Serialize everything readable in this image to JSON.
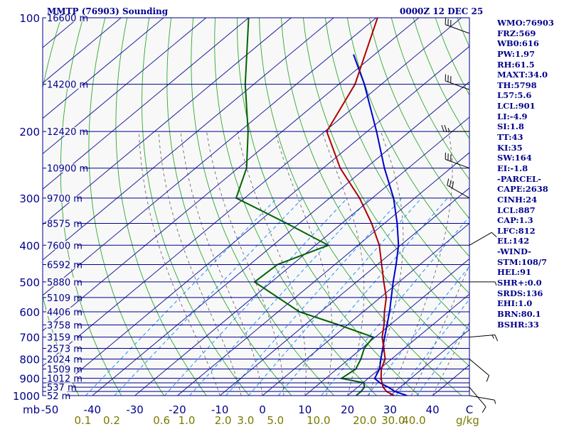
{
  "header": {
    "left": "MMTP (76903) Sounding",
    "right": "0000Z 12 DEC 25"
  },
  "indices": [
    "WMO:76903",
    "FRZ:569",
    "WB0:616",
    "PW:1.97",
    "RH:61.5",
    "MAXT:34.0",
    "TH:5798",
    "L57:5.6",
    "LCL:901",
    "LI:-4.9",
    "SI:1.8",
    "TT:43",
    "KI:35",
    "SW:164",
    "EI:-1.8",
    "-PARCEL-",
    "CAPE:2638",
    "CINH:24",
    "LCL:887",
    "CAP:1.3",
    "LFC:812",
    "EL:142",
    "-WIND-",
    "STM:108/7",
    "HEL:91",
    "SHR+:0.0",
    "SRDS:136",
    "EHI:1.0",
    "BRN:80.1",
    "BSHR:33"
  ],
  "colors": {
    "background_plot": "#f8f8f8",
    "isobar": "#00008b",
    "isotherm": "#2020a0",
    "dry_adiabat": "#2fa82f",
    "moist_adiabat": "#5a5a5a",
    "mixing_ratio": "#1e90ff",
    "temperature": "#b00000",
    "dewpoint": "#006400",
    "parcel": "#0000cd",
    "wind_barb": "#000000",
    "label_dark": "#00008b",
    "label_mixing": "#7a7a00"
  },
  "chart_data": {
    "type": "skew-t",
    "pressure_label": "mb",
    "pressure_ticks": [
      100,
      200,
      300,
      400,
      500,
      600,
      700,
      800,
      900,
      1000
    ],
    "pressure_lines": [
      100,
      150,
      200,
      250,
      300,
      350,
      400,
      450,
      500,
      550,
      600,
      650,
      700,
      750,
      800,
      850,
      900,
      925,
      950,
      975,
      1000
    ],
    "height_labels": [
      {
        "p": 100,
        "label": "16600 m"
      },
      {
        "p": 150,
        "label": "14200 m"
      },
      {
        "p": 200,
        "label": "12420 m"
      },
      {
        "p": 250,
        "label": "10900 m"
      },
      {
        "p": 300,
        "label": "9700 m"
      },
      {
        "p": 350,
        "label": "8575 m"
      },
      {
        "p": 400,
        "label": "7600 m"
      },
      {
        "p": 450,
        "label": "6592 m"
      },
      {
        "p": 500,
        "label": "5880 m"
      },
      {
        "p": 550,
        "label": "5109 m"
      },
      {
        "p": 600,
        "label": "4406 m"
      },
      {
        "p": 650,
        "label": "3758 m"
      },
      {
        "p": 700,
        "label": "3159 m"
      },
      {
        "p": 750,
        "label": "2573 m"
      },
      {
        "p": 800,
        "label": "2024 m"
      },
      {
        "p": 850,
        "label": "1509 m"
      },
      {
        "p": 900,
        "label": "1012 m"
      },
      {
        "p": 950,
        "label": "537 m"
      },
      {
        "p": 1000,
        "label": "52 m"
      }
    ],
    "temp_ticks": [
      -50,
      -40,
      -30,
      -20,
      -10,
      0,
      10,
      20,
      30,
      40
    ],
    "temp_tick_labels": [
      "-50",
      "-40",
      "-30",
      "-20",
      "-10",
      "0",
      "10",
      "20",
      "30",
      "40"
    ],
    "mixing_ratio_unit": "g/kg",
    "mixing_ratio_labels": [
      {
        "w": 0.1,
        "label": "0.1"
      },
      {
        "w": 0.2,
        "label": "0.2"
      },
      {
        "w": 0.6,
        "label": "0.6"
      },
      {
        "w": 1.0,
        "label": "1.0"
      },
      {
        "w": 2.0,
        "label": "2.0"
      },
      {
        "w": 3.0,
        "label": "3.0"
      },
      {
        "w": 5.0,
        "label": "5.0"
      },
      {
        "w": 10.0,
        "label": "10.0"
      },
      {
        "w": 20.0,
        "label": "20.0"
      },
      {
        "w": 30.0,
        "label": "30.0"
      },
      {
        "w": 40.0,
        "label": "40.0"
      }
    ],
    "mixing_ratio_lines": [
      0.1,
      0.2,
      0.6,
      1,
      2,
      3,
      5,
      10,
      20,
      30,
      40
    ],
    "temperature": [
      {
        "p": 1000,
        "t": 31.0
      },
      {
        "p": 975,
        "t": 28.0
      },
      {
        "p": 950,
        "t": 26.0
      },
      {
        "p": 925,
        "t": 24.5
      },
      {
        "p": 900,
        "t": 23.0
      },
      {
        "p": 850,
        "t": 20.4
      },
      {
        "p": 800,
        "t": 18.5
      },
      {
        "p": 750,
        "t": 15.2
      },
      {
        "p": 700,
        "t": 11.6
      },
      {
        "p": 650,
        "t": 8.6
      },
      {
        "p": 600,
        "t": 5.0
      },
      {
        "p": 550,
        "t": 1.4
      },
      {
        "p": 500,
        "t": -3.6
      },
      {
        "p": 450,
        "t": -9.0
      },
      {
        "p": 400,
        "t": -15.0
      },
      {
        "p": 350,
        "t": -23.0
      },
      {
        "p": 300,
        "t": -33.0
      },
      {
        "p": 250,
        "t": -46.0
      },
      {
        "p": 200,
        "t": -59.5
      },
      {
        "p": 150,
        "t": -66.2
      },
      {
        "p": 100,
        "t": -79.7
      }
    ],
    "dewpoint": [
      {
        "p": 1000,
        "t": 22.0
      },
      {
        "p": 975,
        "t": 22.0
      },
      {
        "p": 950,
        "t": 21.6
      },
      {
        "p": 925,
        "t": 20.2
      },
      {
        "p": 900,
        "t": 13.7
      },
      {
        "p": 850,
        "t": 14.4
      },
      {
        "p": 800,
        "t": 12.8
      },
      {
        "p": 750,
        "t": 10.6
      },
      {
        "p": 700,
        "t": 9.5
      },
      {
        "p": 650,
        "t": -2.0
      },
      {
        "p": 600,
        "t": -15.0
      },
      {
        "p": 500,
        "t": -34.0
      },
      {
        "p": 450,
        "t": -33.5
      },
      {
        "p": 400,
        "t": -27.0
      },
      {
        "p": 350,
        "t": -43.0
      },
      {
        "p": 300,
        "t": -62.0
      },
      {
        "p": 250,
        "t": -68.0
      },
      {
        "p": 200,
        "t": -78.0
      },
      {
        "p": 150,
        "t": -92.0
      },
      {
        "p": 100,
        "t": -110.0
      }
    ],
    "parcel": [
      {
        "p": 1000,
        "t": 34.0
      },
      {
        "p": 975,
        "t": 30.0
      },
      {
        "p": 950,
        "t": 27.2
      },
      {
        "p": 925,
        "t": 24.0
      },
      {
        "p": 900,
        "t": 21.5
      },
      {
        "p": 850,
        "t": 20.0
      },
      {
        "p": 800,
        "t": 17.5
      },
      {
        "p": 700,
        "t": 12.2
      },
      {
        "p": 600,
        "t": 6.2
      },
      {
        "p": 500,
        "t": -1.4
      },
      {
        "p": 450,
        "t": -5.6
      },
      {
        "p": 400,
        "t": -10.5
      },
      {
        "p": 350,
        "t": -17.0
      },
      {
        "p": 300,
        "t": -25.0
      },
      {
        "p": 250,
        "t": -35.6
      },
      {
        "p": 200,
        "t": -47.8
      },
      {
        "p": 150,
        "t": -64.0
      },
      {
        "p": 125,
        "t": -75.0
      }
    ],
    "wind": [
      {
        "p": 110,
        "dir": 290,
        "spd": 30
      },
      {
        "p": 155,
        "dir": 290,
        "spd": 30
      },
      {
        "p": 200,
        "dir": 270,
        "spd": 25
      },
      {
        "p": 250,
        "dir": 290,
        "spd": 30
      },
      {
        "p": 300,
        "dir": 300,
        "spd": 30
      },
      {
        "p": 400,
        "dir": 60,
        "spd": 10
      },
      {
        "p": 500,
        "dir": 90,
        "spd": 5
      },
      {
        "p": 700,
        "dir": 85,
        "spd": 15
      },
      {
        "p": 800,
        "dir": 130,
        "spd": 10
      },
      {
        "p": 950,
        "dir": 140,
        "spd": 10
      },
      {
        "p": 1000,
        "dir": 100,
        "spd": 5
      }
    ]
  }
}
